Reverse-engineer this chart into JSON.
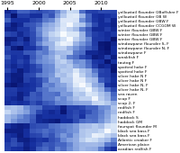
{
  "title": "",
  "x_ticks": [
    0,
    5,
    10,
    15
  ],
  "x_tick_labels": [
    "1995",
    "2000",
    "2005",
    "2010"
  ],
  "row_labels": [
    "yellowtail flounder GBoffshre F",
    "yellowtail flounder GB W",
    "yellowtail flounder GBW F",
    "yellowtail flounder CCGOM W",
    "winter flounder GBW F",
    "winter flounder GBW F",
    "winter flounder GBW F",
    "windowpane flounder S, F",
    "windowpane flounder N, F",
    "windowpane F",
    "weakfish F",
    "tautog F",
    "spotted hake F",
    "spotted hake F",
    "silver hake N F",
    "silver hake N F",
    "silver hake N, F",
    "silver hake N, F",
    "sea raven",
    "scup F",
    "scup 2, F",
    "redfish F",
    "redfish F",
    "haddock S",
    "haddock GM",
    "fourspot flounder M",
    "black sea bass F",
    "black sea bass F",
    "Atlantic croaker F",
    "American plaice",
    "acadian redfish F"
  ],
  "ncols": 18,
  "nrows": 31,
  "tick_fontsize": 4.5,
  "label_fontsize": 3.2,
  "colors": [
    "#06106a",
    "#1630a0",
    "#4060c0",
    "#7090d8",
    "#a0b8e8",
    "#ccddf5",
    "#ffffff"
  ]
}
